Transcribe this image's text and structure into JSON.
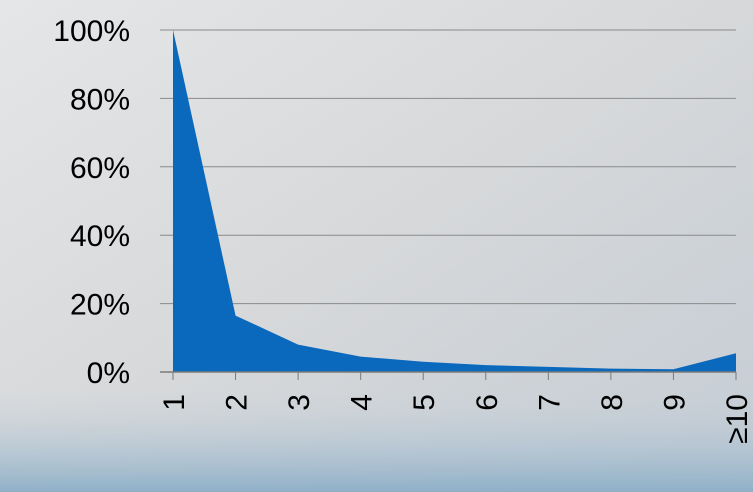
{
  "chart_data": {
    "type": "area",
    "categories": [
      "1",
      "2",
      "3",
      "4",
      "5",
      "6",
      "7",
      "8",
      "9",
      "≥10"
    ],
    "values": [
      100,
      16.5,
      8,
      4.5,
      3,
      2,
      1.5,
      1,
      0.8,
      5.5
    ],
    "color": "#0a68bd",
    "ylim": [
      0,
      100
    ],
    "yticks": [
      {
        "value": 0,
        "label": "0%"
      },
      {
        "value": 20,
        "label": "20%"
      },
      {
        "value": 40,
        "label": "40%"
      },
      {
        "value": 60,
        "label": "60%"
      },
      {
        "value": 80,
        "label": "80%"
      },
      {
        "value": 100,
        "label": "100%"
      }
    ],
    "grid": true
  }
}
